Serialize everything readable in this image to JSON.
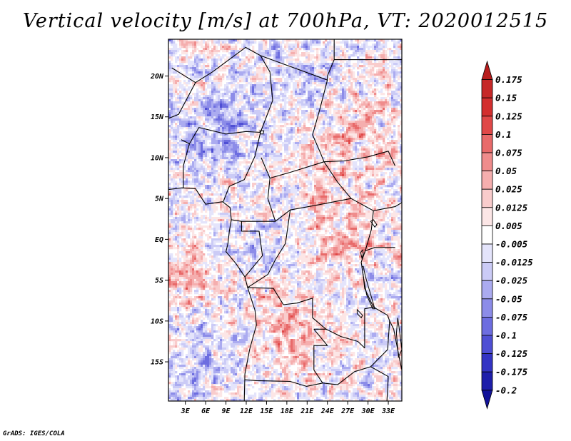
{
  "title": "Vertical velocity [m/s] at 700hPa, VT: 2020012515",
  "credit": "GrADS: IGES/COLA",
  "lat_labels": [
    "20N",
    "15N",
    "10N",
    "5N",
    "EQ",
    "5S",
    "10S",
    "15S"
  ],
  "lat_values": [
    20,
    15,
    10,
    5,
    0,
    -5,
    -10,
    -15
  ],
  "lon_labels": [
    "3E",
    "6E",
    "9E",
    "12E",
    "15E",
    "18E",
    "21E",
    "24E",
    "27E",
    "30E",
    "33E"
  ],
  "lon_values": [
    3,
    6,
    9,
    12,
    15,
    18,
    21,
    24,
    27,
    30,
    33
  ],
  "map_extent": {
    "lon_min": 0.5,
    "lon_max": 35.0,
    "lat_min": -19.8,
    "lat_max": 24.5
  },
  "colorbar": {
    "labels": [
      "0.175",
      "0.15",
      "0.125",
      "0.1",
      "0.075",
      "0.05",
      "0.025",
      "0.0125",
      "0.005",
      "-0.005",
      "-0.0125",
      "-0.025",
      "-0.05",
      "-0.075",
      "-0.1",
      "-0.125",
      "-0.175",
      "-0.2"
    ],
    "colors": [
      "#b71c1c",
      "#c62828",
      "#d32f2f",
      "#e04848",
      "#e86a6a",
      "#ef8c8c",
      "#f5aeae",
      "#f9cccc",
      "#fce6e6",
      "#ffffff",
      "#e4e4fb",
      "#cbcbf6",
      "#ababf0",
      "#8c8ce8",
      "#6d6de0",
      "#4f4fd4",
      "#3434c4",
      "#1e1eaa",
      "#12129a"
    ]
  },
  "chart_data": {
    "type": "heatmap",
    "title": "Vertical velocity [m/s] at 700hPa, VT: 2020012515",
    "variable": "Vertical velocity",
    "units": "m/s",
    "level": "700hPa",
    "valid_time": "2020012515",
    "x_ticks": [
      "3E",
      "6E",
      "9E",
      "12E",
      "15E",
      "18E",
      "21E",
      "24E",
      "27E",
      "30E",
      "33E"
    ],
    "y_ticks": [
      "20N",
      "15N",
      "10N",
      "5N",
      "EQ",
      "5S",
      "10S",
      "15S"
    ],
    "xlim": [
      0.5,
      35.0
    ],
    "ylim": [
      -19.8,
      24.5
    ],
    "contour_levels": [
      -0.2,
      -0.175,
      -0.125,
      -0.1,
      -0.075,
      -0.05,
      -0.025,
      -0.0125,
      -0.005,
      0.005,
      0.0125,
      0.025,
      0.05,
      0.075,
      0.1,
      0.125,
      0.15,
      0.175
    ]
  }
}
